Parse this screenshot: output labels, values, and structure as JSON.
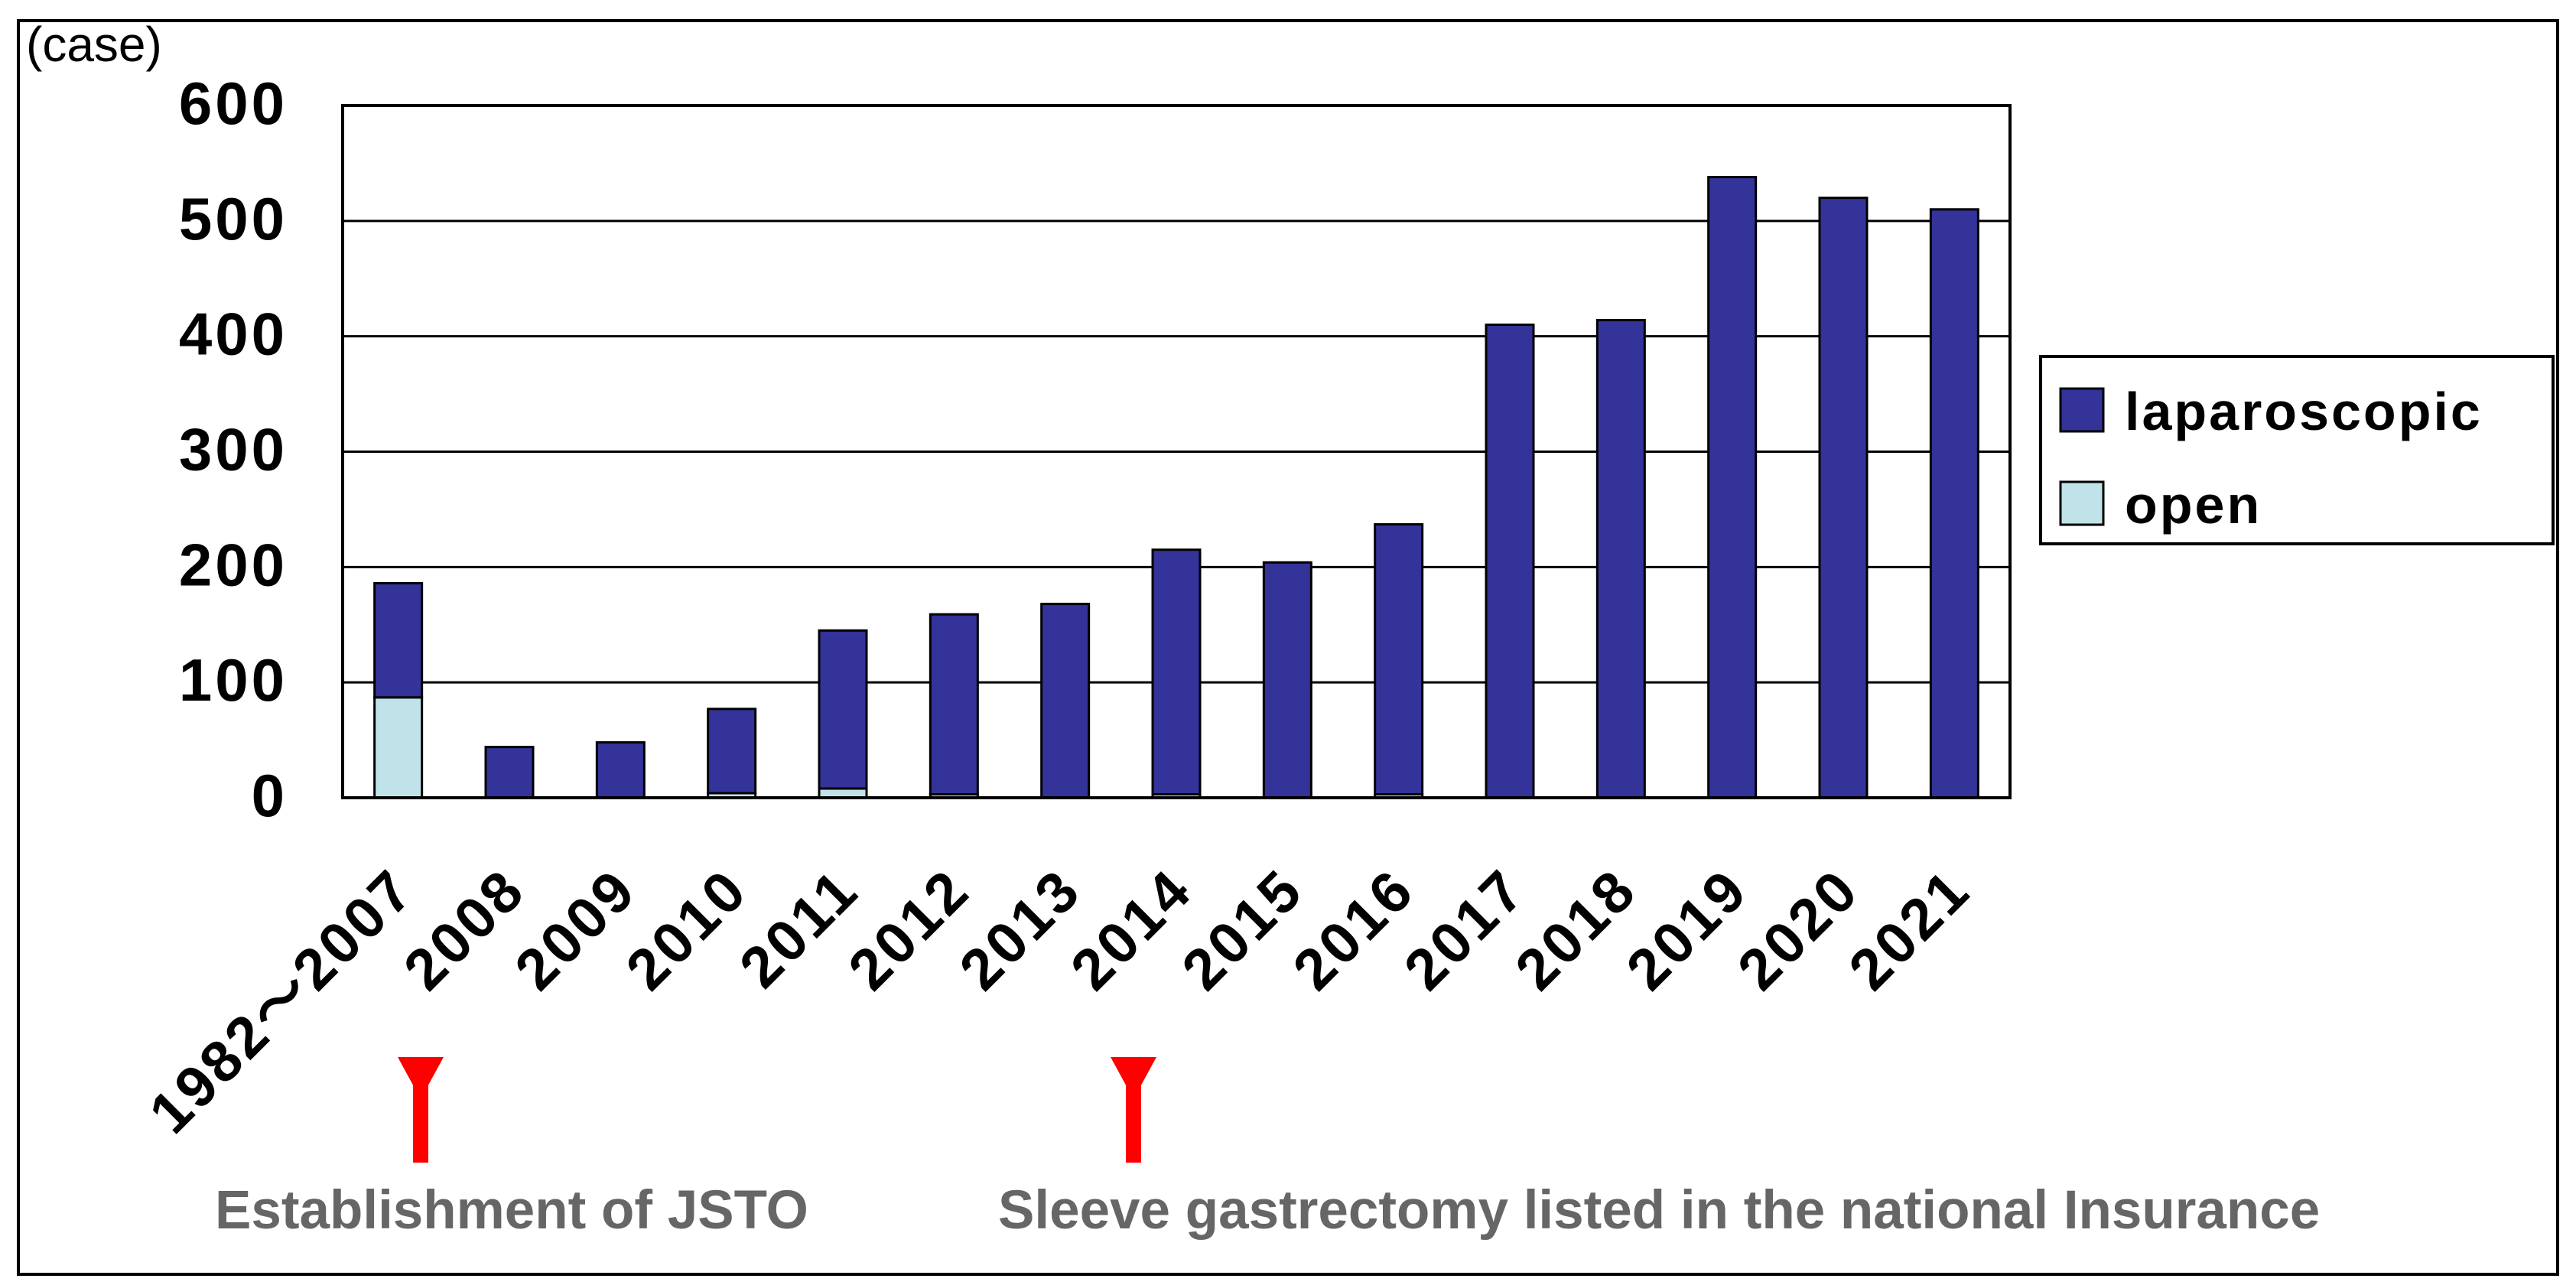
{
  "colors": {
    "laparoscopic": "#333399",
    "open": "#BFE3E8",
    "annotation_arrow": "#FF0000",
    "annotation_text": "#666666",
    "frame": "#000000"
  },
  "chart_data": {
    "type": "bar",
    "stacked": true,
    "unit_label": "(case)",
    "categories": [
      "1982～2007",
      "2008",
      "2009",
      "2010",
      "2011",
      "2012",
      "2013",
      "2014",
      "2015",
      "2016",
      "2017",
      "2018",
      "2019",
      "2020",
      "2021"
    ],
    "series": [
      {
        "name": "open",
        "values": [
          87,
          0,
          0,
          4,
          8,
          3,
          0,
          3,
          0,
          3,
          0,
          0,
          0,
          0,
          0
        ]
      },
      {
        "name": "laparoscopic",
        "values": [
          99,
          44,
          48,
          73,
          137,
          156,
          168,
          212,
          204,
          234,
          410,
          414,
          538,
          520,
          510
        ]
      }
    ],
    "ylim": [
      0,
      600
    ],
    "yticks": [
      "0",
      "100",
      "200",
      "300",
      "400",
      "500",
      "600"
    ],
    "grid": true,
    "legend": {
      "position": "right",
      "entries": [
        "laparoscopic",
        "open"
      ]
    },
    "annotations": [
      {
        "text": "Establishment of JSTO",
        "category": "2008"
      },
      {
        "text": "Sleeve gastrectomy listed in the national Insurance",
        "category": "2014"
      }
    ]
  }
}
